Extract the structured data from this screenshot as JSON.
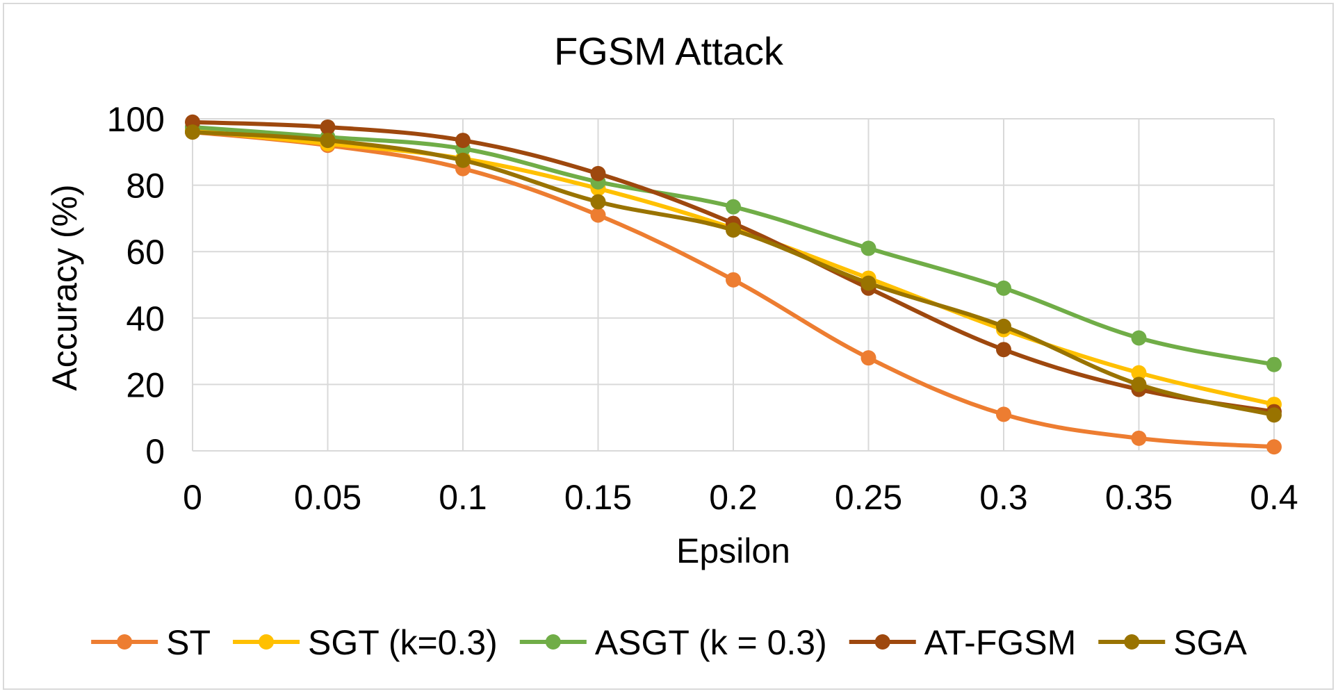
{
  "chart_data": {
    "type": "line",
    "title": "FGSM Attack",
    "xlabel": "Epsilon",
    "ylabel": "Accuracy (%)",
    "categories": [
      "0",
      "0.05",
      "0.1",
      "0.15",
      "0.2",
      "0.25",
      "0.3",
      "0.35",
      "0.4"
    ],
    "ylim": [
      0,
      100
    ],
    "yticks": [
      "0",
      "20",
      "40",
      "60",
      "80",
      "100"
    ],
    "grid": true,
    "legend_position": "bottom",
    "series": [
      {
        "name": "ST",
        "color": "#ED7D31",
        "values": [
          96,
          92,
          85,
          71,
          51.5,
          28,
          11,
          3.8,
          1.2
        ]
      },
      {
        "name": "SGT (k=0.3)",
        "color": "#FFC000",
        "values": [
          96.5,
          92.5,
          88,
          79,
          67,
          52,
          36.5,
          23.5,
          14
        ]
      },
      {
        "name": "ASGT (k = 0.3)",
        "color": "#70AD47",
        "values": [
          97.5,
          94.5,
          91,
          81,
          73.5,
          61,
          49,
          34,
          26
        ]
      },
      {
        "name": "AT-FGSM",
        "color": "#9E480E",
        "values": [
          99,
          97.5,
          93.5,
          83.5,
          68.5,
          49,
          30.5,
          18.5,
          11.8
        ]
      },
      {
        "name": "SGA",
        "color": "#997300",
        "values": [
          96,
          93.5,
          87.5,
          75,
          66.5,
          50.5,
          37.5,
          20,
          10.8
        ]
      }
    ]
  }
}
